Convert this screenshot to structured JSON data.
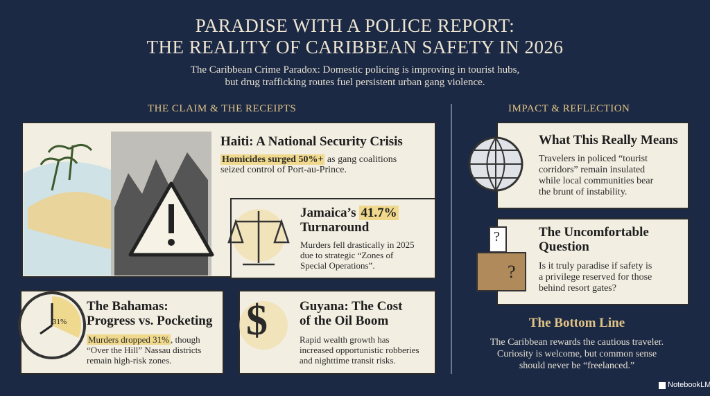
{
  "header": {
    "title": [
      "PARADISE WITH A POLICE REPORT:",
      "THE REALITY OF CARIBBEAN SAFETY IN 2026"
    ],
    "subtitle": [
      "The Caribbean Crime Paradox: Domestic policing is improving in tourist hubs,",
      "but drug trafficking routes fuel persistent urban gang violence."
    ]
  },
  "left": {
    "heading": "THE CLAIM & THE RECEIPTS",
    "haiti": {
      "title": "Haiti: A National Security Crisis",
      "highlight": "Homicides surged 50%+",
      "rest": "as gang coalitions",
      "lines": [
        "seized control of Port-au-Prince."
      ]
    },
    "jamaica": {
      "title_prefix": "Jamaica’s",
      "title_highlight": "41.7%",
      "title_suffix": "Turnaround",
      "body": [
        "Murders fell drastically in 2025",
        "due to strategic “Zones of",
        "Special Operations”."
      ]
    },
    "bahamas": {
      "title": [
        "The Bahamas:",
        "Progress vs. Pocketing"
      ],
      "highlight": "Murders dropped 31%",
      "rest": ", though",
      "lines": [
        "“Over the Hill” Nassau districts",
        "remain high-risk zones."
      ],
      "clock_label": "31%"
    },
    "guyana": {
      "title": [
        "Guyana: The Cost",
        "of the Oil Boom"
      ],
      "body": [
        "Rapid wealth growth has",
        "increased opportunistic robberies",
        "and nighttime transit risks."
      ],
      "icon": "$"
    }
  },
  "right": {
    "heading": "IMPACT & REFLECTION",
    "cards": [
      {
        "title": [
          "What This Really Means"
        ],
        "body": [
          "Travelers in policed “tourist",
          "corridors” remain insulated",
          "while local communities bear",
          "the brunt of instability."
        ]
      },
      {
        "title": [
          "The Uncomfortable",
          "Question"
        ],
        "body": [
          "Is it truly paradise if safety is",
          "a privilege reserved for those",
          "behind resort gates?"
        ],
        "marks": [
          "?",
          "?"
        ]
      }
    ],
    "bottom": {
      "title": "The Bottom Line",
      "body": [
        "The Caribbean rewards the cautious traveler.",
        "Curiosity is welcome, but common sense",
        "should never be “freelanced.”"
      ]
    }
  },
  "footer": "NotebookLM"
}
